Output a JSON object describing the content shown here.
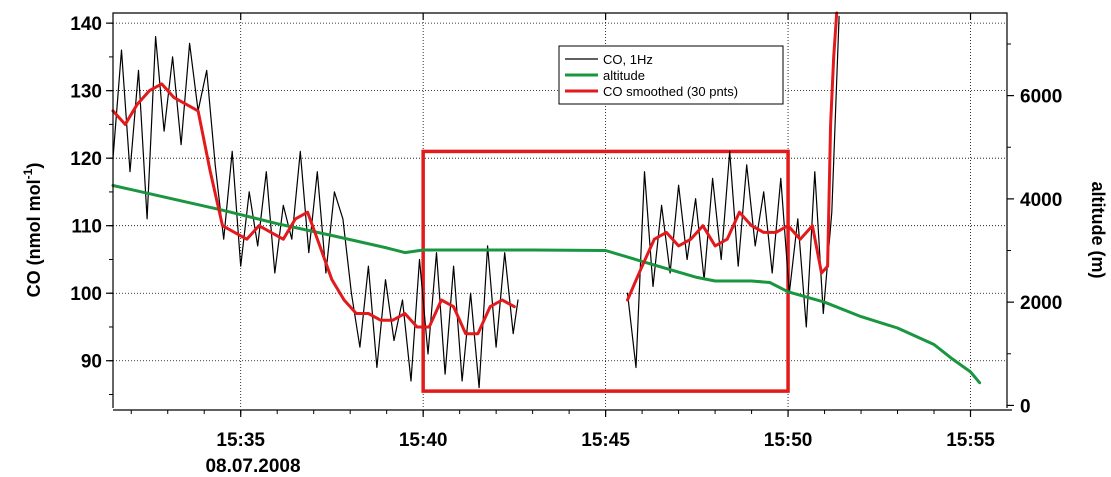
{
  "chart_data": {
    "type": "line",
    "x_unit": "time (HH:MM)",
    "xlim": [
      "15:31:30",
      "15:56:00"
    ],
    "x_ticks": [
      "15:35",
      "15:40",
      "15:45",
      "15:50",
      "15:55"
    ],
    "x_date_label": "08.07.2008",
    "ylim_left": [
      83,
      141.5
    ],
    "y_ticks_left": [
      90,
      100,
      110,
      120,
      130,
      140
    ],
    "ylabel_left": "CO (nmol mol",
    "ylabel_left_superscript": "-1",
    "ylabel_left_suffix": ")",
    "ylim_right": [
      -50,
      7600
    ],
    "y_ticks_right": [
      0,
      2000,
      4000,
      6000
    ],
    "ylabel_right": "altitude (m)",
    "grid": true,
    "legend_position": "top-center",
    "legend": [
      "CO, 1Hz",
      "altitude",
      "CO smoothed (30 pnts)"
    ],
    "colors": {
      "co_1hz": "#000000",
      "altitude": "#1a9641",
      "co_smoothed": "#e31a1c",
      "highlight_box": "#e31a1c"
    },
    "highlight_box": {
      "x_start": "15:40:00",
      "x_end": "15:50:00",
      "y_low": 85.5,
      "y_high": 121
    },
    "series": [
      {
        "name": "CO, 1Hz",
        "axis": "left",
        "segments": [
          {
            "x": [
              "15:31:30",
              "15:31:44",
              "15:31:58",
              "15:32:12",
              "15:32:26",
              "15:32:40",
              "15:32:54",
              "15:33:08",
              "15:33:22",
              "15:33:36",
              "15:33:50",
              "15:34:04",
              "15:34:18",
              "15:34:32",
              "15:34:46",
              "15:35:00",
              "15:35:14",
              "15:35:28",
              "15:35:42",
              "15:35:56",
              "15:36:10",
              "15:36:24",
              "15:36:38",
              "15:36:52",
              "15:37:06",
              "15:37:20",
              "15:37:34",
              "15:37:48",
              "15:38:02",
              "15:38:16",
              "15:38:30",
              "15:38:44",
              "15:38:58",
              "15:39:12",
              "15:39:26",
              "15:39:40",
              "15:39:54",
              "15:40:08",
              "15:40:22",
              "15:40:36",
              "15:40:50",
              "15:41:04",
              "15:41:18",
              "15:41:32",
              "15:41:46",
              "15:42:00",
              "15:42:14",
              "15:42:28",
              "15:42:36"
            ],
            "y": [
              120,
              136,
              118,
              133,
              111,
              138,
              124,
              135,
              122,
              137,
              127,
              133,
              119,
              108,
              121,
              104,
              115,
              107,
              118,
              103,
              113,
              108,
              121,
              106,
              118,
              103,
              115,
              111,
              100,
              92,
              104,
              89,
              102,
              93,
              99,
              87,
              105,
              91,
              106,
              88,
              104,
              87,
              100,
              86,
              107,
              92,
              106,
              94,
              99
            ]
          },
          {
            "x": [
              "15:45:36",
              "15:45:50",
              "15:46:04",
              "15:46:18",
              "15:46:32",
              "15:46:46",
              "15:47:00",
              "15:47:14",
              "15:47:28",
              "15:47:42",
              "15:47:56",
              "15:48:10",
              "15:48:24",
              "15:48:38",
              "15:48:52",
              "15:49:06",
              "15:49:20",
              "15:49:34",
              "15:49:48",
              "15:50:02",
              "15:50:16",
              "15:50:30",
              "15:50:44",
              "15:50:58",
              "15:51:12",
              "15:51:24"
            ],
            "y": [
              100,
              89,
              118,
              101,
              113,
              103,
              116,
              105,
              114,
              102,
              117,
              105,
              121,
              104,
              119,
              107,
              115,
              103,
              117,
              100,
              111,
              95,
              118,
              97,
              112,
              141
            ]
          }
        ]
      },
      {
        "name": "altitude",
        "axis": "right",
        "segments": [
          {
            "x": [
              "15:31:30",
              "15:33:00",
              "15:34:30",
              "15:36:00",
              "15:37:30",
              "15:39:00",
              "15:39:30",
              "15:40:00",
              "15:41:00",
              "15:43:00",
              "15:45:00",
              "15:46:00",
              "15:47:30",
              "15:48:00",
              "15:49:00",
              "15:49:30",
              "15:50:00",
              "15:51:00",
              "15:52:00",
              "15:53:00",
              "15:54:00",
              "15:54:30",
              "15:55:00",
              "15:55:15"
            ],
            "y": [
              4260,
              4020,
              3780,
              3520,
              3290,
              3050,
              2960,
              3010,
              3010,
              3010,
              3000,
              2790,
              2480,
              2410,
              2410,
              2380,
              2200,
              2000,
              1720,
              1500,
              1180,
              900,
              650,
              440
            ]
          }
        ]
      },
      {
        "name": "CO smoothed (30 pnts)",
        "axis": "left",
        "segments": [
          {
            "x": [
              "15:31:30",
              "15:31:50",
              "15:32:10",
              "15:32:30",
              "15:32:50",
              "15:33:10",
              "15:33:30",
              "15:33:50",
              "15:34:10",
              "15:34:30",
              "15:34:50",
              "15:35:10",
              "15:35:30",
              "15:35:50",
              "15:36:10",
              "15:36:30",
              "15:36:50",
              "15:37:10",
              "15:37:30",
              "15:37:50",
              "15:38:10",
              "15:38:30",
              "15:38:50",
              "15:39:10",
              "15:39:30",
              "15:39:50",
              "15:40:10",
              "15:40:30",
              "15:40:50",
              "15:41:10",
              "15:41:30",
              "15:41:50",
              "15:42:10",
              "15:42:30"
            ],
            "y": [
              127,
              125,
              128,
              130,
              131,
              129,
              128,
              127,
              118,
              110,
              109,
              108,
              110,
              109,
              108,
              111,
              112,
              107,
              102,
              99,
              97,
              97,
              96,
              96,
              97,
              95,
              95,
              99,
              98,
              94,
              94,
              98,
              99,
              98
            ]
          },
          {
            "x": [
              "15:45:36",
              "15:46:00",
              "15:46:20",
              "15:46:40",
              "15:47:00",
              "15:47:20",
              "15:47:40",
              "15:48:00",
              "15:48:20",
              "15:48:40",
              "15:49:00",
              "15:49:20",
              "15:49:40",
              "15:50:00",
              "15:50:20",
              "15:50:40",
              "15:50:55",
              "15:51:05",
              "15:51:10",
              "15:51:15",
              "15:51:20"
            ],
            "y": [
              99,
              104,
              108,
              109,
              107,
              108,
              110,
              107,
              108,
              112,
              110,
              109,
              109,
              110,
              108,
              110,
              103,
              104,
              125,
              135,
              141.5
            ]
          }
        ]
      }
    ]
  }
}
